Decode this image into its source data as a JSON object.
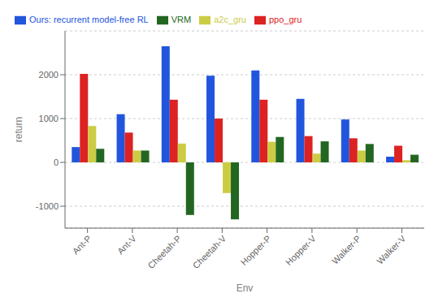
{
  "chart_data": {
    "type": "bar",
    "categories": [
      "Ant-P",
      "Ant-V",
      "Cheetah-P",
      "Cheetah-V",
      "Hopper-P",
      "Hopper-V",
      "Walker-P",
      "Walker-V"
    ],
    "series": [
      {
        "name": "Ours: recurrent model-free RL",
        "color": "#2255dd",
        "values": [
          350,
          1100,
          2650,
          1980,
          2100,
          1450,
          980,
          130
        ]
      },
      {
        "name": "ppo_gru",
        "color": "#dd2222",
        "values": [
          2020,
          680,
          1430,
          1000,
          1430,
          600,
          550,
          380
        ]
      },
      {
        "name": "a2c_gru",
        "color": "#cccc44",
        "values": [
          830,
          270,
          430,
          -700,
          470,
          200,
          270,
          50
        ]
      },
      {
        "name": "VRM",
        "color": "#226622",
        "values": [
          310,
          270,
          -1200,
          -1300,
          580,
          480,
          420,
          175
        ]
      }
    ],
    "xlabel": "Env",
    "ylabel": "return",
    "ylim": [
      -1500,
      3000
    ],
    "yticks": [
      -1000,
      0,
      1000,
      2000
    ],
    "grid": true,
    "legend": "upper left"
  }
}
